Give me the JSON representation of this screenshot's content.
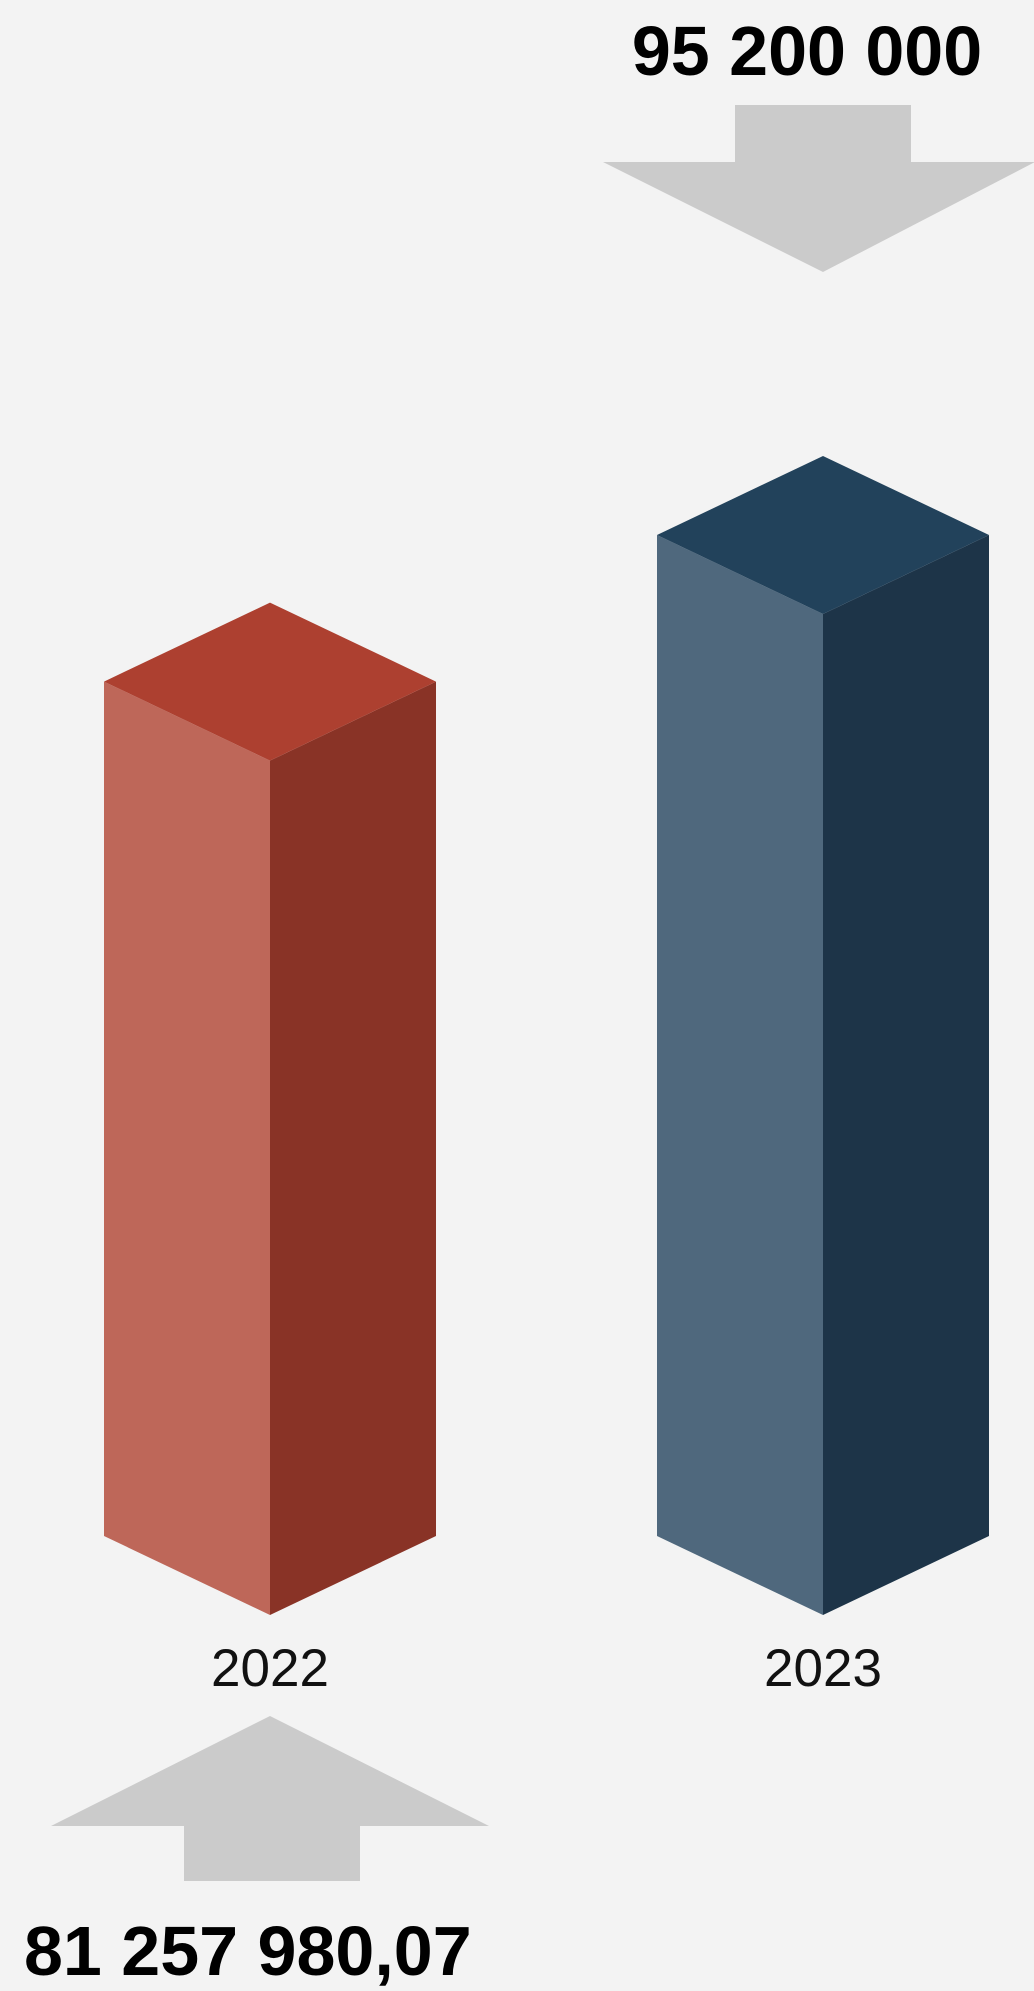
{
  "chart_data": {
    "type": "bar",
    "style": "3d-isometric-columns",
    "categories": [
      "2022",
      "2023"
    ],
    "values": [
      81257980.07,
      95200000
    ],
    "value_labels": [
      "81 257 980,07",
      "95 200 000"
    ],
    "title": "",
    "xlabel": "",
    "ylabel": "",
    "grid": false,
    "legend": "none",
    "colors": [
      {
        "top": "#ad4030",
        "front": "#be6759",
        "side": "#893326"
      },
      {
        "top": "#22425b",
        "front": "#4f687d",
        "side": "#1d3448"
      }
    ],
    "arrow_color": "#cbcbcb",
    "arrows": [
      "up",
      "down"
    ]
  }
}
